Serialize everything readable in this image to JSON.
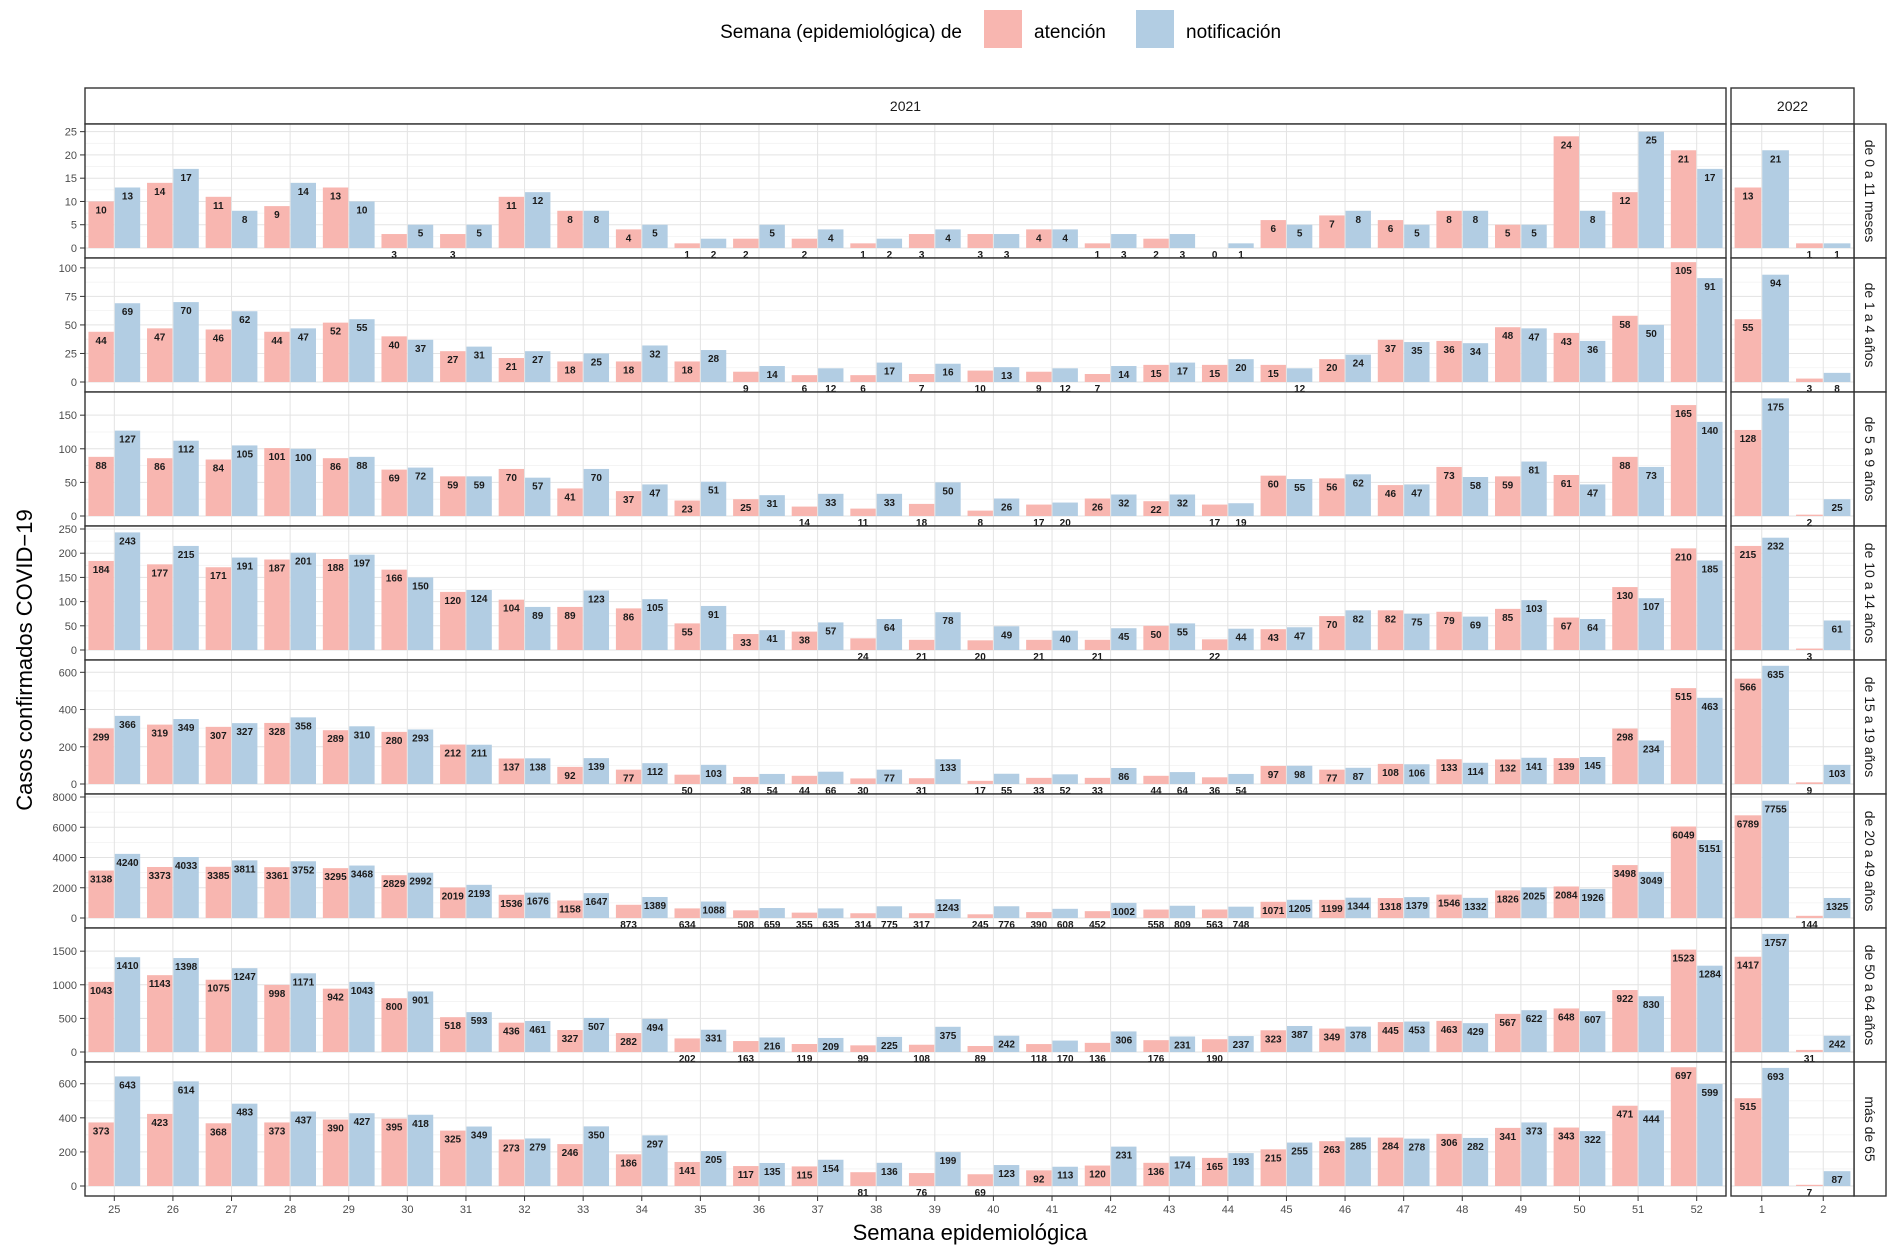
{
  "chart_data": {
    "type": "bar",
    "title": "",
    "xlabel": "Semana epidemiológica",
    "ylabel": "Casos confirmados COVID−19",
    "grid": true,
    "legend": {
      "placement": "top",
      "title": "Semana (epidemiológica) de",
      "entries": [
        {
          "name": "atención",
          "color": "#F8B6B0"
        },
        {
          "name": "notificación",
          "color": "#B2CDE3"
        }
      ]
    },
    "columns": [
      {
        "name": "2021",
        "weeks": [
          "25",
          "26",
          "27",
          "28",
          "29",
          "30",
          "31",
          "32",
          "33",
          "34",
          "35",
          "36",
          "37",
          "38",
          "39",
          "40",
          "41",
          "42",
          "43",
          "44",
          "45",
          "46",
          "47",
          "48",
          "49",
          "50",
          "51",
          "52"
        ]
      },
      {
        "name": "2022",
        "weeks": [
          "1",
          "2"
        ]
      }
    ],
    "rows": [
      {
        "name": "de 0 a 11 meses",
        "ylim": [
          0,
          26
        ],
        "yticks": [
          0,
          5,
          10,
          15,
          20,
          25
        ],
        "atencion": [
          10,
          14,
          11,
          9,
          13,
          3,
          3,
          11,
          8,
          4,
          1,
          2,
          2,
          1,
          3,
          3,
          4,
          1,
          2,
          0,
          6,
          7,
          6,
          8,
          5,
          24,
          12,
          21,
          13,
          1
        ],
        "notificacion": [
          13,
          17,
          8,
          14,
          10,
          5,
          5,
          12,
          8,
          5,
          2,
          5,
          4,
          2,
          4,
          3,
          4,
          3,
          3,
          1,
          5,
          8,
          5,
          8,
          5,
          8,
          25,
          17,
          21,
          1
        ]
      },
      {
        "name": "de 1 a 4 años",
        "ylim": [
          0,
          106
        ],
        "yticks": [
          0,
          25,
          50,
          75,
          100
        ],
        "atencion": [
          44,
          47,
          46,
          44,
          52,
          40,
          27,
          21,
          18,
          18,
          18,
          9,
          6,
          6,
          7,
          10,
          9,
          7,
          15,
          15,
          15,
          20,
          37,
          36,
          48,
          43,
          58,
          105,
          55,
          3
        ],
        "notificacion": [
          69,
          70,
          62,
          47,
          55,
          37,
          31,
          27,
          25,
          32,
          28,
          14,
          12,
          17,
          16,
          13,
          12,
          14,
          17,
          20,
          12,
          24,
          35,
          34,
          47,
          36,
          50,
          91,
          94,
          8
        ]
      },
      {
        "name": "de 5 a 9 años",
        "ylim": [
          0,
          180
        ],
        "yticks": [
          0,
          50,
          100,
          150
        ],
        "atencion": [
          88,
          86,
          84,
          101,
          86,
          69,
          59,
          70,
          41,
          37,
          23,
          25,
          14,
          11,
          18,
          8,
          17,
          26,
          22,
          17,
          60,
          56,
          46,
          73,
          59,
          61,
          88,
          165,
          128,
          2
        ],
        "notificacion": [
          127,
          112,
          105,
          100,
          88,
          72,
          59,
          57,
          70,
          47,
          51,
          31,
          33,
          33,
          50,
          26,
          20,
          32,
          32,
          19,
          55,
          62,
          47,
          58,
          81,
          47,
          73,
          140,
          175,
          25
        ]
      },
      {
        "name": "de 10 a 14 años",
        "ylim": [
          0,
          250
        ],
        "yticks": [
          0,
          50,
          100,
          150,
          200,
          250
        ],
        "atencion": [
          184,
          177,
          171,
          187,
          188,
          166,
          120,
          104,
          89,
          86,
          55,
          33,
          38,
          24,
          21,
          20,
          21,
          21,
          50,
          22,
          43,
          70,
          82,
          79,
          85,
          67,
          130,
          210,
          215,
          3
        ],
        "notificacion": [
          243,
          215,
          191,
          201,
          197,
          150,
          124,
          89,
          123,
          105,
          91,
          41,
          57,
          64,
          78,
          49,
          40,
          45,
          55,
          44,
          47,
          82,
          75,
          69,
          103,
          64,
          107,
          185,
          232,
          61
        ]
      },
      {
        "name": "de 15 a 19 años",
        "ylim": [
          0,
          650
        ],
        "yticks": [
          0,
          200,
          400,
          600
        ],
        "atencion": [
          299,
          319,
          307,
          328,
          289,
          280,
          212,
          137,
          92,
          77,
          50,
          38,
          44,
          30,
          31,
          17,
          33,
          33,
          44,
          36,
          97,
          77,
          108,
          133,
          132,
          139,
          298,
          515,
          566,
          9
        ],
        "notificacion": [
          366,
          349,
          327,
          358,
          310,
          293,
          211,
          138,
          139,
          112,
          103,
          54,
          66,
          77,
          133,
          55,
          52,
          86,
          64,
          54,
          98,
          87,
          106,
          114,
          141,
          145,
          234,
          463,
          635,
          103
        ]
      },
      {
        "name": "de 20 a 49 años",
        "ylim": [
          0,
          8000
        ],
        "yticks": [
          0,
          2000,
          4000,
          6000,
          8000
        ],
        "atencion": [
          3138,
          3373,
          3385,
          3361,
          3295,
          2829,
          2019,
          1536,
          1158,
          873,
          634,
          508,
          355,
          314,
          317,
          245,
          390,
          452,
          558,
          563,
          1071,
          1199,
          1318,
          1546,
          1826,
          2084,
          3498,
          6049,
          6789,
          144
        ],
        "notificacion": [
          4240,
          4033,
          3811,
          3752,
          3468,
          2992,
          2193,
          1676,
          1647,
          1389,
          1088,
          659,
          635,
          775,
          1243,
          776,
          608,
          1002,
          809,
          748,
          1205,
          1344,
          1379,
          1332,
          2025,
          1926,
          3049,
          5151,
          7755,
          1325
        ]
      },
      {
        "name": "de 50 a 64 años",
        "ylim": [
          0,
          1800
        ],
        "yticks": [
          0,
          500,
          1000,
          1500
        ],
        "atencion": [
          1043,
          1143,
          1075,
          998,
          942,
          800,
          518,
          436,
          327,
          282,
          202,
          163,
          119,
          99,
          108,
          89,
          118,
          136,
          176,
          190,
          323,
          349,
          445,
          463,
          567,
          648,
          922,
          1523,
          1417,
          31
        ],
        "notificacion": [
          1410,
          1398,
          1247,
          1171,
          1043,
          901,
          593,
          461,
          507,
          494,
          331,
          216,
          209,
          225,
          375,
          242,
          170,
          306,
          231,
          237,
          387,
          378,
          453,
          429,
          622,
          607,
          830,
          1284,
          1757,
          242
        ]
      },
      {
        "name": "más de 65",
        "ylim": [
          0,
          710
        ],
        "yticks": [
          0,
          200,
          400,
          600
        ],
        "atencion": [
          373,
          423,
          368,
          373,
          390,
          395,
          325,
          273,
          246,
          186,
          141,
          117,
          115,
          81,
          76,
          69,
          92,
          120,
          136,
          165,
          215,
          263,
          284,
          306,
          341,
          343,
          471,
          697,
          515,
          7
        ],
        "notificacion": [
          643,
          614,
          483,
          437,
          427,
          418,
          349,
          279,
          350,
          297,
          205,
          135,
          154,
          136,
          199,
          123,
          113,
          231,
          174,
          193,
          255,
          285,
          278,
          282,
          373,
          322,
          444,
          599,
          693,
          87
        ]
      }
    ]
  }
}
